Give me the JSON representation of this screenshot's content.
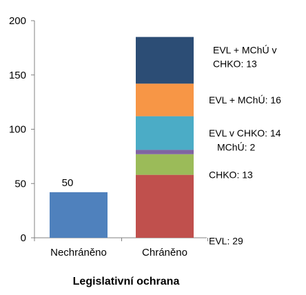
{
  "chart_data": {
    "type": "bar",
    "stacked": true,
    "categories": [
      "Nechráněno",
      "Chráněno"
    ],
    "xlabel": "Legislativní ochrana",
    "ylabel": "",
    "ylim": [
      0,
      200
    ],
    "yticks": [
      "0",
      "50",
      "100",
      "150",
      "200"
    ],
    "grid": false,
    "bars": [
      {
        "category": "Nechráněno",
        "value": 42,
        "label": "50",
        "color": "#4f81bd"
      },
      {
        "category": "Chráněno",
        "segments": [
          {
            "label": "EVL: 29",
            "value": 58,
            "color": "#c0504d"
          },
          {
            "label": "CHKO: 13",
            "value": 19,
            "color": "#9bbb59"
          },
          {
            "label": "MChÚ: 2",
            "value": 4,
            "color": "#8064a2"
          },
          {
            "label": "EVL v CHKO: 14",
            "value": 31,
            "color": "#4bacc6"
          },
          {
            "label": "EVL + MChÚ: 16",
            "value": 30,
            "color": "#f79646"
          },
          {
            "label": "EVL + MChÚ v CHKO: 13",
            "lines": [
              "EVL + MChÚ v",
              "CHKO: 13"
            ],
            "value": 43,
            "color": "#2c4d75"
          }
        ]
      }
    ]
  }
}
